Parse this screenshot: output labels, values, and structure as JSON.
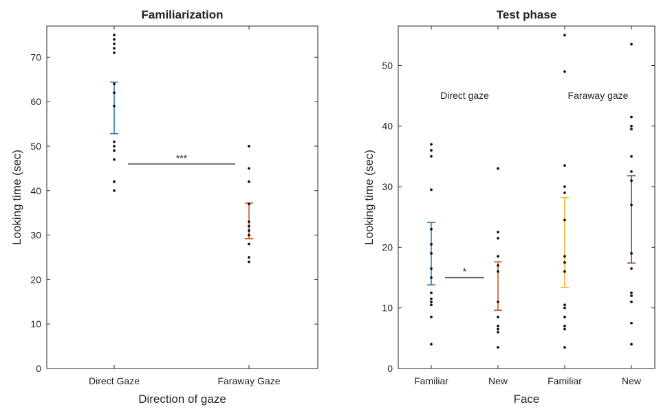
{
  "chart_data": [
    {
      "type": "scatter",
      "title": "Familiarization",
      "xlabel": "Direction of gaze",
      "ylabel": "Looking time (sec)",
      "ylim": [
        0,
        77
      ],
      "yticks": [
        0,
        10,
        20,
        30,
        40,
        50,
        60,
        70
      ],
      "categories": [
        "Direct Gaze",
        "Faraway Gaze"
      ],
      "colors": [
        "#2c7bb6",
        "#d9541a"
      ],
      "points": [
        [
          75,
          74,
          73,
          72,
          71,
          64,
          62,
          59,
          51,
          50,
          49,
          47,
          42,
          40
        ],
        [
          50,
          45,
          42,
          37,
          33,
          32,
          31,
          30,
          28,
          25,
          24
        ]
      ],
      "errorbars": [
        {
          "low": 52.8,
          "high": 64.4
        },
        {
          "low": 29.2,
          "high": 37.2
        }
      ],
      "comparison": {
        "from": 0,
        "to": 1,
        "y": 46,
        "label": "***"
      },
      "grid": false,
      "legend": null
    },
    {
      "type": "scatter",
      "title": "Test phase",
      "xlabel": "Face",
      "ylabel": "Looking time (sec)",
      "ylim": [
        0,
        56.5
      ],
      "yticks": [
        0,
        10,
        20,
        30,
        40,
        50
      ],
      "categories": [
        "Familiar",
        "New",
        "Familiar",
        "New"
      ],
      "colors": [
        "#2c7bb6",
        "#d9541a",
        "#edb120",
        "#7e2f8e"
      ],
      "points": [
        [
          37,
          36,
          35,
          29.5,
          23,
          20.5,
          19,
          16.5,
          15,
          12.5,
          11.5,
          11,
          10.5,
          8.5,
          4
        ],
        [
          33,
          22.5,
          21.5,
          18.5,
          17,
          16,
          11,
          8.5,
          7,
          6.5,
          6,
          3.5
        ],
        [
          55,
          49,
          33.5,
          30,
          29,
          24.5,
          18.5,
          17.5,
          16,
          10.5,
          10,
          8.5,
          7,
          6.5,
          3.5
        ],
        [
          53.5,
          41.5,
          40,
          39.5,
          35,
          32.5,
          31,
          27,
          19,
          16.5,
          12.5,
          12,
          11,
          7.5,
          4
        ]
      ],
      "errorbars": [
        {
          "low": 13.8,
          "high": 24.1
        },
        {
          "low": 9.6,
          "high": 17.6
        },
        {
          "low": 13.4,
          "high": 28.2
        },
        {
          "low": 17.4,
          "high": 31.8
        }
      ],
      "comparison": {
        "from": 0,
        "to": 1,
        "y": 15,
        "label": "*"
      },
      "annotations": [
        {
          "text": "Direct gaze",
          "x": 0.5,
          "y": 44.5
        },
        {
          "text": "Faraway gaze",
          "x": 2.5,
          "y": 44.5
        }
      ],
      "grid": false,
      "legend": null
    }
  ]
}
